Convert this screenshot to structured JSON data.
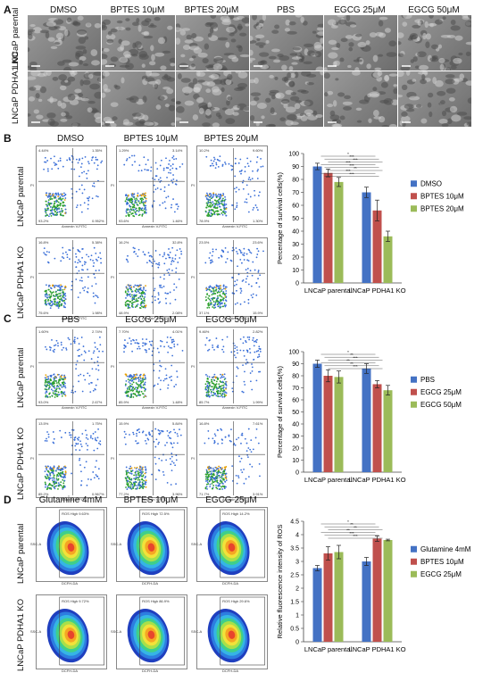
{
  "panels": {
    "A": {
      "letter": "A",
      "columns": [
        "DMSO",
        "BPTES 10μM",
        "BPTES 20μM",
        "PBS",
        "EGCG 25μM",
        "EGCG 50μM"
      ],
      "rows": [
        "LNCaP parental",
        "LNCaP PDHA1 KO"
      ]
    },
    "B": {
      "letter": "B",
      "columns": [
        "DMSO",
        "BPTES 10μM",
        "BPTES 20μM"
      ],
      "rows": [
        "LNCaP parental",
        "LNCaP PDHA1 KO"
      ],
      "quadrant_values": [
        [
          [
            "4.44%",
            "1.35%",
            "93.2%",
            "0.952%"
          ],
          [
            "1.29%",
            "3.14%",
            "93.6%",
            "1.46%"
          ],
          [
            "10.2%",
            "9.60%",
            "78.9%",
            "1.30%"
          ]
        ],
        [
          [
            "16.8%",
            "5.38%",
            "75.6%",
            "1.98%"
          ],
          [
            "16.2%",
            "32.8%",
            "48.9%",
            "2.08%"
          ],
          [
            "23.5%",
            "23.6%",
            "37.1%",
            "15.9%"
          ]
        ]
      ],
      "flow_xlabel": "Annexin V-FITC",
      "flow_ylabel": "PI"
    },
    "C": {
      "letter": "C",
      "columns": [
        "PBS",
        "EGCG 25μM",
        "EGCG 50μM"
      ],
      "rows": [
        "LNCaP parental",
        "LNCaP PDHA1 KO"
      ],
      "quadrant_values": [
        [
          [
            "1.60%",
            "2.74%",
            "93.0%",
            "2.67%"
          ],
          [
            "7.70%",
            "4.01%",
            "85.9%",
            "1.48%"
          ],
          [
            "9.46%",
            "2.82%",
            "85.7%",
            "1.99%"
          ]
        ],
        [
          [
            "13.5%",
            "1.75%",
            "85.2%",
            "0.567%"
          ],
          [
            "15.9%",
            "5.84%",
            "77.2%",
            "3.96%"
          ],
          [
            "16.8%",
            "7.61%",
            "71.7%",
            "3.91%"
          ]
        ]
      ],
      "flow_xlabel": "Annexin V-FITC",
      "flow_ylabel": "PI"
    },
    "D": {
      "letter": "D",
      "columns": [
        "Glutamine 4mM",
        "BPTES 10μM",
        "EGCG 25μM"
      ],
      "rows": [
        "LNCaP parental",
        "LNCaP PDHA1 KO"
      ],
      "gate_values": [
        [
          "ROS High 9.63%",
          "ROS High 72.5%",
          "ROS High 14.2%"
        ],
        [
          "ROS High 9.72%",
          "ROS High 86.9%",
          "ROS High 29.6%"
        ]
      ],
      "flow_xlabel": "DCFH-DA",
      "flow_ylabel": "SSC-A"
    }
  },
  "chart_data": [
    {
      "type": "bar",
      "panel": "B",
      "categories": [
        "LNCaP parental",
        "LNCaP PDHA1 KO"
      ],
      "series": [
        {
          "name": "DMSO",
          "color": "#4472c4",
          "values": [
            90,
            70
          ],
          "errors": [
            2.5,
            4
          ]
        },
        {
          "name": "BPTES 10μM",
          "color": "#c0504d",
          "values": [
            85,
            56
          ],
          "errors": [
            3,
            8
          ]
        },
        {
          "name": "BPTES 20μM",
          "color": "#9bbb59",
          "values": [
            78,
            36
          ],
          "errors": [
            3.5,
            4
          ]
        }
      ],
      "ylabel": "Percentage of survival cells(%)",
      "ylim": [
        0,
        100
      ],
      "yticks": [
        "0",
        "10",
        "20",
        "30",
        "40",
        "50",
        "60",
        "70",
        "80",
        "90",
        "100"
      ],
      "significance": [
        "*",
        "***",
        "***",
        "***",
        "***",
        "**",
        "***",
        "***"
      ],
      "legend_position": "right"
    },
    {
      "type": "bar",
      "panel": "C",
      "categories": [
        "LNCaP parental",
        "LNCaP PDHA1 KO"
      ],
      "series": [
        {
          "name": "PBS",
          "color": "#4472c4",
          "values": [
            90,
            86
          ],
          "errors": [
            3,
            4
          ]
        },
        {
          "name": "EGCG 25μM",
          "color": "#c0504d",
          "values": [
            80,
            73
          ],
          "errors": [
            5,
            3
          ]
        },
        {
          "name": "EGCG 50μM",
          "color": "#9bbb59",
          "values": [
            79,
            68
          ],
          "errors": [
            5,
            4
          ]
        }
      ],
      "ylabel": "Percentage of survival cells(%)",
      "ylim": [
        0,
        100
      ],
      "yticks": [
        "0",
        "10",
        "20",
        "30",
        "40",
        "50",
        "60",
        "70",
        "80",
        "90",
        "100"
      ],
      "significance": [
        "*",
        "**",
        "***",
        "**",
        "**",
        "***"
      ],
      "legend_position": "right"
    },
    {
      "type": "bar",
      "panel": "D",
      "categories": [
        "LNCaP parental",
        "LNCaP PDHA1 KO"
      ],
      "series": [
        {
          "name": "Glutamine 4mM",
          "color": "#4472c4",
          "values": [
            2.75,
            3.0
          ],
          "errors": [
            0.1,
            0.15
          ]
        },
        {
          "name": "BPTES 10μM",
          "color": "#c0504d",
          "values": [
            3.3,
            3.85
          ],
          "errors": [
            0.25,
            0.1
          ]
        },
        {
          "name": "EGCG 25μM",
          "color": "#9bbb59",
          "values": [
            3.35,
            3.8
          ],
          "errors": [
            0.25,
            0.03
          ]
        }
      ],
      "ylabel": "Relative fluorescence intensity of ROS",
      "ylim": [
        0,
        4.5
      ],
      "yticks": [
        "0",
        "0.5",
        "1",
        "1.5",
        "2",
        "2.5",
        "3",
        "3.5",
        "4",
        "4.5"
      ],
      "significance": [
        "*",
        "**",
        "**",
        "**",
        "***",
        "***"
      ],
      "legend_position": "right"
    }
  ]
}
